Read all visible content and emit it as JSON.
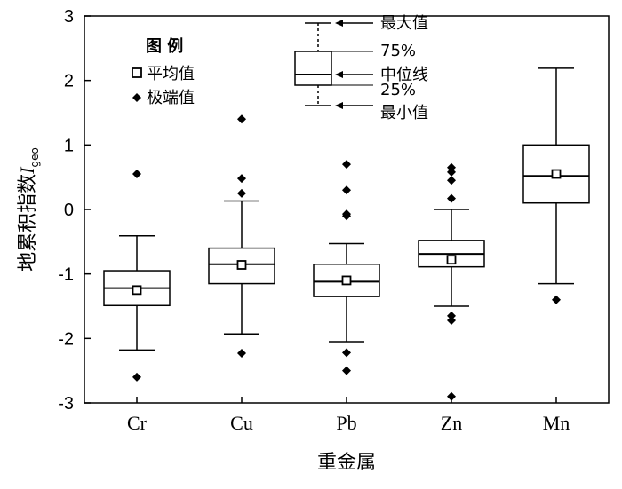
{
  "chart_data": {
    "type": "boxplot",
    "xlabel": "重金属",
    "ylabel_main": "地累积指数",
    "ylabel_symbol": "I",
    "ylabel_subscript": "geo",
    "ylim": [
      -3,
      3
    ],
    "yticks": [
      "3",
      "2",
      "1",
      "0",
      "-1",
      "-2",
      "-3"
    ],
    "categories": [
      "Cr",
      "Cu",
      "Pb",
      "Zn",
      "Mn"
    ],
    "boxes": [
      {
        "name": "Cr",
        "min": -2.18,
        "q1": -1.49,
        "median": -1.22,
        "q3": -0.95,
        "max": -0.41,
        "mean": -1.25,
        "outliers": [
          0.55,
          -2.6
        ]
      },
      {
        "name": "Cu",
        "min": -1.93,
        "q1": -1.15,
        "median": -0.85,
        "q3": -0.6,
        "max": 0.13,
        "mean": -0.86,
        "outliers": [
          1.4,
          0.48,
          0.25,
          -2.23
        ]
      },
      {
        "name": "Pb",
        "min": -2.05,
        "q1": -1.35,
        "median": -1.12,
        "q3": -0.85,
        "max": -0.53,
        "mean": -1.1,
        "outliers": [
          0.7,
          0.3,
          -0.07,
          -0.1,
          -2.22,
          -2.5
        ]
      },
      {
        "name": "Zn",
        "min": -1.5,
        "q1": -0.89,
        "median": -0.69,
        "q3": -0.48,
        "max": 0.0,
        "mean": -0.78,
        "outliers": [
          0.65,
          0.58,
          0.45,
          0.17,
          -1.65,
          -1.72,
          -2.9
        ]
      },
      {
        "name": "Mn",
        "min": -1.15,
        "q1": 0.1,
        "median": 0.52,
        "q3": 1.0,
        "max": 2.19,
        "mean": 0.55,
        "outliers": [
          -1.4
        ]
      }
    ],
    "legend": {
      "title": "图 例",
      "mean_label": "平均值",
      "outlier_label": "极端值"
    },
    "key": {
      "max": "最大值",
      "q3": "75%",
      "median": "中位线",
      "q1": "25%",
      "min": "最小值"
    }
  }
}
